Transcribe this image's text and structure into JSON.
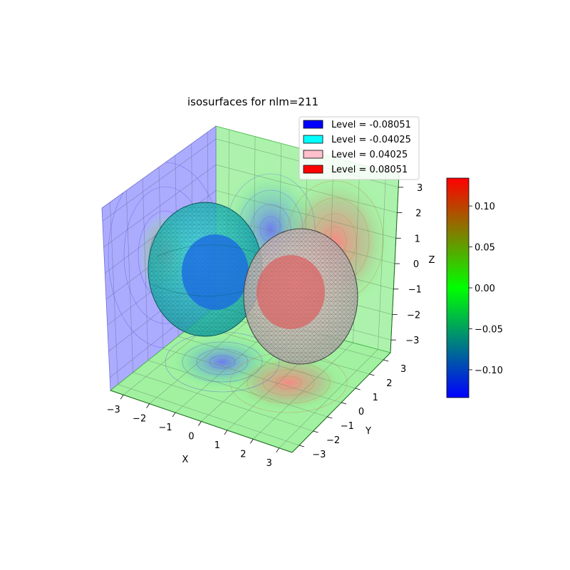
{
  "chart_data": [
    {
      "type": "isosurface-3d",
      "title": "isosurfaces for nlm=211",
      "axes": {
        "x": {
          "label": "X",
          "ticks": [
            "−3",
            "−2",
            "−1",
            "0",
            "1",
            "2",
            "3"
          ],
          "range": [
            -3.5,
            3.5
          ]
        },
        "y": {
          "label": "Y",
          "ticks": [
            "−3",
            "−2",
            "−1",
            "0",
            "1",
            "2",
            "3"
          ],
          "range": [
            -3.5,
            3.5
          ]
        },
        "z": {
          "label": "Z",
          "ticks": [
            "−3",
            "−2",
            "−1",
            "0",
            "1",
            "2",
            "3"
          ],
          "range": [
            -3.5,
            3.5
          ]
        }
      },
      "grid": true,
      "legend_position": "top-right",
      "series": [
        {
          "name": "Level = -0.08051",
          "level": -0.08051,
          "color": "#0000ff"
        },
        {
          "name": "Level = -0.04025",
          "level": -0.04025,
          "color": "#00ffff"
        },
        {
          "name": "Level = 0.04025",
          "level": 0.04025,
          "color": "#ffc0cb"
        },
        {
          "name": "Level = 0.08051",
          "level": 0.08051,
          "color": "#ff0000"
        }
      ],
      "lobes": [
        {
          "sign": "negative",
          "center": {
            "x": -1.5,
            "y": 0,
            "z": 0
          }
        },
        {
          "sign": "positive",
          "center": {
            "x": 1.5,
            "y": 0,
            "z": 0
          }
        }
      ]
    },
    {
      "type": "colorbar",
      "ticks": [
        "0.10",
        "0.05",
        "0.00",
        "−0.05",
        "−0.10"
      ],
      "tick_values": [
        0.1,
        0.05,
        0.0,
        -0.05,
        -0.1
      ],
      "range": [
        -0.134,
        0.134
      ],
      "colormap": [
        "#0000ff",
        "#00ff00",
        "#ff0000"
      ]
    }
  ]
}
